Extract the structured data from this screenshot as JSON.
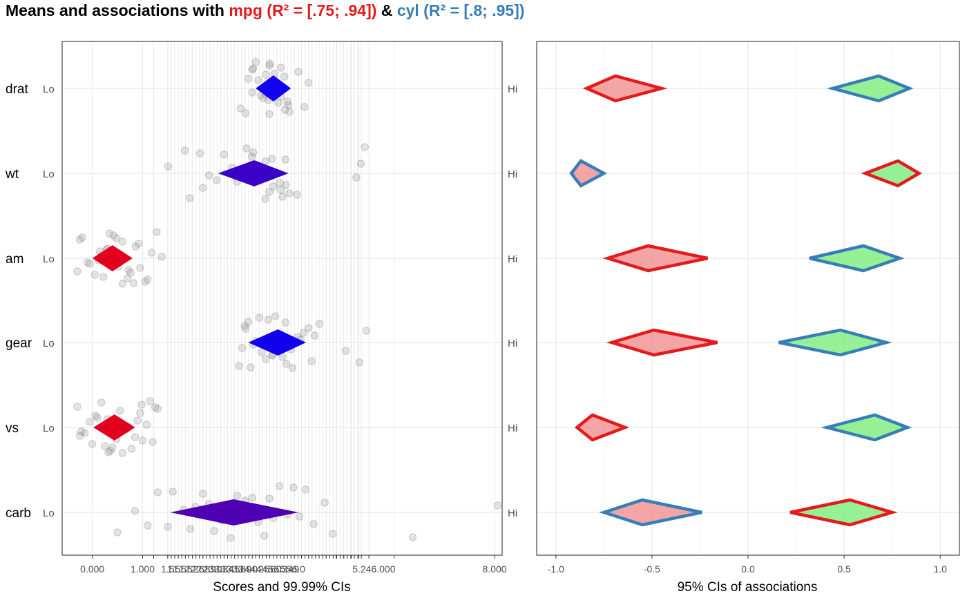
{
  "title": {
    "prefix": "Means and associations with ",
    "criterion1": "mpg (R² = [.75; .94])",
    "joiner": " & ",
    "criterion2": "cyl (R² = [.8; .95])",
    "colors": {
      "criterion1": "#E41A1C",
      "criterion2": "#377EB8",
      "prefix": "#000000"
    }
  },
  "chart_data": [
    {
      "type": "scatter",
      "panel": "left",
      "xlabel": "Scores and 99.99% CIs",
      "xlim": [
        -0.6,
        8.15
      ],
      "x_ticks_readable": [
        "0.000",
        "1.000",
        "8.000"
      ],
      "x_tick_labels_overlapping": [
        "1.5",
        "1.5",
        "1.5",
        "1.5",
        "2.2",
        "2.6",
        "2.8",
        "2.9",
        "3.0",
        "3.3",
        "3.4",
        "3.5",
        "3.8",
        "3.9",
        "4.0",
        "4.2",
        "4.5",
        "4.6",
        "5.0",
        "5.3",
        "5.4",
        "5.9",
        "6.0"
      ],
      "right_tick_label": "5.246.000",
      "low_label": "Lo",
      "high_label": "Hi",
      "items": [
        {
          "name": "drat",
          "mean": 3.6,
          "ci": [
            3.25,
            3.95
          ],
          "color": "#1200EE",
          "points": [
            3.75,
            3.9,
            3.3,
            3.52,
            3.62,
            3.45,
            3.53,
            3.5,
            3.83,
            3.6,
            3.18,
            3.75,
            3.82,
            3.92,
            3.66,
            3.52,
            3.7,
            4.3,
            4.22,
            4.1,
            3.4,
            3.25,
            3.18,
            3.1,
            2.95,
            3.78,
            3.88,
            3.2,
            3.05,
            3.55,
            3.35,
            3.45
          ]
        },
        {
          "name": "wt",
          "mean": 3.22,
          "ci": [
            2.5,
            3.9
          ],
          "color": "#3A00C6",
          "points": [
            3.2,
            3.75,
            3.15,
            3.44,
            3.57,
            3.34,
            3.07,
            3.85,
            4.07,
            3.46,
            2.62,
            2.88,
            3.44,
            3.78,
            2.32,
            1.84,
            2.2,
            2.78,
            3.52,
            3.17,
            3.73,
            5.42,
            5.25,
            5.34,
            3.92,
            3.06,
            3.6,
            2.14,
            1.94,
            1.51,
            2.47,
            3.84
          ]
        },
        {
          "name": "am",
          "mean": 0.4,
          "ci": [
            0.0,
            0.8
          ],
          "color": "#E2001E",
          "points": [
            -0.2,
            0.05,
            0.28,
            0.6,
            0.92,
            -0.05,
            0.34,
            0.72,
            1.1,
            0.18,
            -0.25,
            0.52,
            0.86,
            1.05,
            0.12,
            0.42,
            0.76,
            1.18,
            0.22,
            0.6,
            0.95,
            1.28,
            -0.1,
            0.3,
            0.7,
            1.38,
            -0.3,
            0.48,
            0.82,
            0.15
          ]
        },
        {
          "name": "gear",
          "mean": 3.69,
          "ci": [
            3.1,
            4.25
          ],
          "color": "#1100EE",
          "points": [
            3.1,
            3.45,
            3.74,
            3.98,
            4.3,
            2.98,
            3.32,
            3.58,
            3.86,
            4.14,
            4.52,
            5.04,
            5.45,
            2.92,
            3.2,
            3.5,
            3.78,
            4.08,
            4.36,
            3.03,
            3.37,
            3.64,
            3.92,
            4.2,
            5.31,
            3.26,
            3.58,
            3.84,
            3.15,
            4.42,
            3.95,
            3.05
          ]
        },
        {
          "name": "vs",
          "mean": 0.44,
          "ci": [
            0.02,
            0.85
          ],
          "color": "#E2001E",
          "points": [
            -0.3,
            0.0,
            0.3,
            0.6,
            0.95,
            -0.15,
            0.18,
            0.48,
            0.78,
            1.08,
            1.3,
            -0.25,
            0.06,
            0.36,
            0.66,
            0.98,
            1.2,
            -0.05,
            0.25,
            0.55,
            0.85,
            1.15,
            -0.22,
            0.1,
            0.4,
            0.7,
            1.0,
            1.25,
            0.32,
            0.9
          ]
        },
        {
          "name": "carb",
          "mean": 2.81,
          "ci": [
            1.55,
            4.1
          ],
          "color": "#4E00B2",
          "points": [
            1.6,
            1.95,
            2.32,
            2.75,
            3.18,
            3.6,
            4.0,
            4.4,
            4.78,
            1.82,
            2.2,
            2.58,
            3.04,
            3.42,
            3.88,
            4.24,
            1.5,
            2.05,
            2.42,
            2.88,
            3.3,
            3.72,
            4.12,
            4.62,
            0.5,
            0.85,
            1.1,
            1.3,
            6.37,
            8.06,
            2.65,
            3.52
          ]
        }
      ]
    },
    {
      "type": "interval",
      "panel": "right",
      "xlabel": "95% CIs of associations",
      "xlim": [
        -1.1,
        1.1
      ],
      "x_ticks": [
        "-1.0",
        "-0.5",
        "0.0",
        "0.5",
        "1.0"
      ],
      "x_tick_values": [
        -1.0,
        -0.5,
        0.0,
        0.5,
        1.0
      ],
      "legend": "none",
      "items": [
        {
          "name": "drat",
          "negative": {
            "lo": -0.84,
            "est": -0.69,
            "hi": -0.45,
            "outline": "mpg"
          },
          "positive": {
            "lo": 0.44,
            "est": 0.68,
            "hi": 0.84,
            "outline": "cyl"
          }
        },
        {
          "name": "wt",
          "negative": {
            "lo": -0.92,
            "est": -0.87,
            "hi": -0.75,
            "outline": "cyl"
          },
          "positive": {
            "lo": 0.61,
            "est": 0.78,
            "hi": 0.89,
            "outline": "mpg"
          }
        },
        {
          "name": "am",
          "negative": {
            "lo": -0.73,
            "est": -0.52,
            "hi": -0.21,
            "outline": "mpg"
          },
          "positive": {
            "lo": 0.32,
            "est": 0.6,
            "hi": 0.79,
            "outline": "cyl"
          }
        },
        {
          "name": "gear",
          "negative": {
            "lo": -0.71,
            "est": -0.49,
            "hi": -0.16,
            "outline": "mpg"
          },
          "positive": {
            "lo": 0.16,
            "est": 0.48,
            "hi": 0.72,
            "outline": "cyl"
          }
        },
        {
          "name": "vs",
          "negative": {
            "lo": -0.89,
            "est": -0.81,
            "hi": -0.64,
            "outline": "mpg"
          },
          "positive": {
            "lo": 0.41,
            "est": 0.66,
            "hi": 0.83,
            "outline": "cyl"
          }
        },
        {
          "name": "carb",
          "negative": {
            "lo": -0.75,
            "est": -0.55,
            "hi": -0.24,
            "outline": "cyl"
          },
          "positive": {
            "lo": 0.22,
            "est": 0.53,
            "hi": 0.75,
            "outline": "mpg"
          }
        }
      ],
      "colors": {
        "mpg_outline": "#E41A1C",
        "cyl_outline": "#377EB8",
        "negative_fill": "#F08080",
        "positive_fill": "#7CEC7C"
      }
    }
  ]
}
